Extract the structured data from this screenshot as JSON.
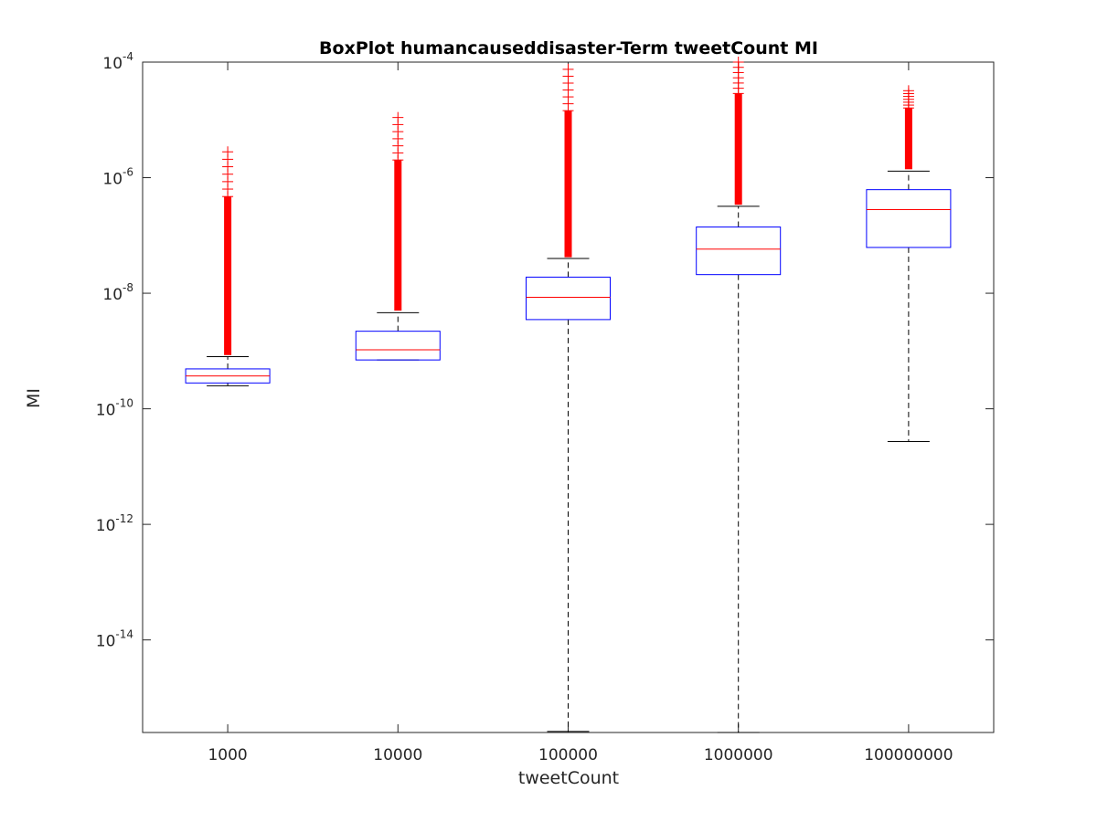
{
  "chart_data": {
    "type": "box",
    "title": "BoxPlot humancauseddisaster-Term tweetCount MI",
    "xlabel": "tweetCount",
    "ylabel": "MI",
    "yscale": "log",
    "ylim": [
      2.5e-16,
      0.0001
    ],
    "yticks": [
      {
        "value": 1e-14,
        "base": "10",
        "exp": "-14"
      },
      {
        "value": 1e-12,
        "base": "10",
        "exp": "-12"
      },
      {
        "value": 1e-10,
        "base": "10",
        "exp": "-10"
      },
      {
        "value": 1e-08,
        "base": "10",
        "exp": "-8"
      },
      {
        "value": 1e-06,
        "base": "10",
        "exp": "-6"
      },
      {
        "value": 0.0001,
        "base": "10",
        "exp": "-4"
      }
    ],
    "categories": [
      "1000",
      "10000",
      "100000",
      "1000000",
      "100000000"
    ],
    "boxes": [
      {
        "category": "1000",
        "whisker_low": 2.5e-10,
        "q1": 2.8e-10,
        "median": 3.7e-10,
        "q3": 4.9e-10,
        "whisker_high": 8e-10,
        "outlier_min": 8.5e-10,
        "outlier_max": 2.8e-06
      },
      {
        "category": "10000",
        "whisker_low": 7e-10,
        "q1": 7e-10,
        "median": 1.05e-09,
        "q3": 2.2e-09,
        "whisker_high": 4.6e-09,
        "outlier_min": 5e-09,
        "outlier_max": 1.1e-05
      },
      {
        "category": "100000",
        "whisker_low": 2.6e-16,
        "q1": 3.5e-09,
        "median": 8.5e-09,
        "q3": 1.9e-08,
        "whisker_high": 4e-08,
        "outlier_min": 4.2e-08,
        "outlier_max": 7.5e-05
      },
      {
        "category": "1000000",
        "whisker_low": 2.5e-16,
        "q1": 2.1e-08,
        "median": 5.8e-08,
        "q3": 1.4e-07,
        "whisker_high": 3.2e-07,
        "outlier_min": 3.4e-07,
        "outlier_max": 0.0001
      },
      {
        "category": "100000000",
        "whisker_low": 2.7e-11,
        "q1": 6.2e-08,
        "median": 2.8e-07,
        "q3": 6.2e-07,
        "whisker_high": 1.3e-06,
        "outlier_min": 1.4e-06,
        "outlier_max": 3.2e-05
      }
    ],
    "colors": {
      "box": "#0000ff",
      "median": "#ff0000",
      "outlier": "#ff0000",
      "whisker": "#000000",
      "axes": "#262626"
    },
    "grid": false,
    "legend": "none"
  }
}
